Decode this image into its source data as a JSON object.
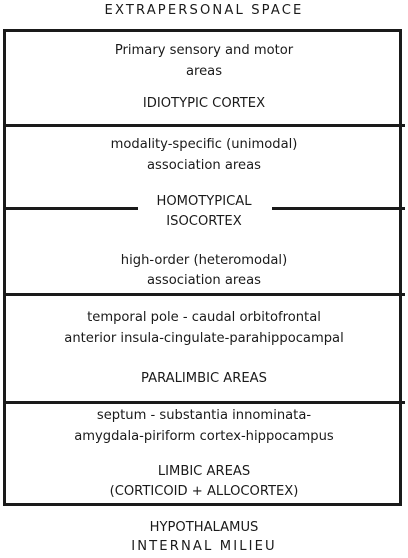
{
  "top_label": "EXTRAPERSONAL SPACE",
  "bottom_label_1": "HYPOTHALAMUS",
  "bottom_label_2": "INTERNAL MILIEU",
  "sections": {
    "idiotypic": {
      "line1": "Primary sensory and motor",
      "line2": "areas",
      "name": "IDIOTYPIC CORTEX"
    },
    "homotypical": {
      "unimodal_line1": "modality-specific (unimodal)",
      "unimodal_line2": "association areas",
      "name_line1": "HOMOTYPICAL",
      "name_line2": "ISOCORTEX",
      "heteromodal_line1": "high-order (heteromodal)",
      "heteromodal_line2": "association areas"
    },
    "paralimbic": {
      "line1": "temporal pole - caudal orbitofrontal",
      "line2": "anterior insula-cingulate-parahippocampal",
      "name": "PARALIMBIC AREAS"
    },
    "limbic": {
      "line1": "septum - substantia innominata-",
      "line2": "amygdala-piriform cortex-hippocampus",
      "name_line1": "LIMBIC AREAS",
      "name_line2": "(CORTICOID + ALLOCORTEX)"
    }
  }
}
